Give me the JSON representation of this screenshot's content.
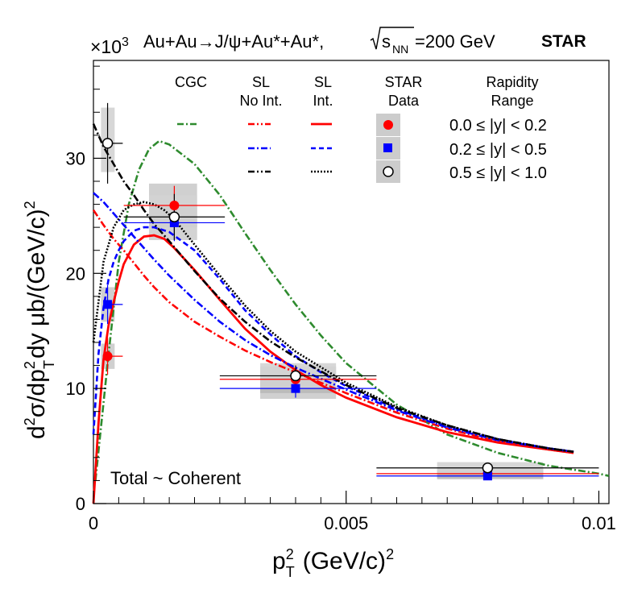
{
  "chart_data": {
    "type": "line",
    "title": "Au+Au→J/ψ+Au*+Au*,",
    "energy_label": "=200 GeV",
    "sqrt_label": "s",
    "sqrt_sub": "NN",
    "experiment": "STAR",
    "multiplier": "×10",
    "multiplier_exp": "3",
    "xlabel_main": "p",
    "xlabel_sup": "2",
    "xlabel_sub": "T",
    "xlabel_rest": "(GeV/c)",
    "xlabel_rest_sup": "2",
    "ylabel_a": "d",
    "ylabel_b": "σ/dp",
    "ylabel_c": "dy μb/(GeV/c)",
    "ylabel_sup1": "2",
    "ylabel_sup2": "2",
    "ylabel_sub": "T",
    "annotation": "Total ~ Coherent",
    "xlim": [
      0,
      0.0102
    ],
    "ylim": [
      0,
      38.5
    ],
    "x_ticks": [
      {
        "value": 0,
        "label": "0"
      },
      {
        "value": 0.005,
        "label": "0.005"
      },
      {
        "value": 0.01,
        "label": "0.01"
      }
    ],
    "y_ticks": [
      {
        "value": 0,
        "label": "0"
      },
      {
        "value": 10,
        "label": "10"
      },
      {
        "value": 20,
        "label": "20"
      },
      {
        "value": 30,
        "label": "30"
      }
    ],
    "legend": {
      "headers": {
        "cgc": "CGC",
        "sl_noint_1": "SL",
        "sl_noint_2": "No Int.",
        "sl_int_1": "SL",
        "sl_int_2": "Int.",
        "star_1": "STAR",
        "star_2": "Data",
        "rap_1": "Rapidity",
        "rap_2": "Range"
      },
      "ranges": [
        "0.0 ≤ |y| < 0.2",
        "0.2 ≤ |y| < 0.5",
        "0.5 ≤ |y| < 1.0"
      ]
    },
    "colors": {
      "cgc": "#2e8b2e",
      "red": "#ff0000",
      "blue": "#0000ff",
      "black": "#000000",
      "syst_light": "#d3d3d3",
      "syst_dark": "#a9a9a9"
    },
    "series": [
      {
        "name": "CGC",
        "style": "dashdot",
        "color": "#2e8b2e",
        "x": [
          4e-05,
          0.0003,
          0.0005,
          0.0007,
          0.0009,
          0.0011,
          0.0013,
          0.0015,
          0.002,
          0.0025,
          0.003,
          0.0035,
          0.004,
          0.0045,
          0.005,
          0.006,
          0.007,
          0.008,
          0.009,
          0.01,
          0.0102
        ],
        "y": [
          2,
          13,
          21,
          26,
          29,
          30.8,
          31.5,
          31.2,
          29.5,
          26.8,
          23.5,
          20.3,
          17.3,
          14.6,
          12.2,
          8.6,
          6.0,
          4.4,
          3.3,
          2.6,
          2.4
        ]
      },
      {
        "name": "SL Int. 0.0<|y|<0.2",
        "style": "solid",
        "color": "#ff0000",
        "x": [
          0,
          0.0001,
          0.0002,
          0.0003,
          0.0004,
          0.0005,
          0.0006,
          0.0008,
          0.001,
          0.0012,
          0.0014,
          0.0016,
          0.002,
          0.0025,
          0.003,
          0.0035,
          0.004,
          0.0045,
          0.005,
          0.006,
          0.007,
          0.008,
          0.009,
          0.0095
        ],
        "y": [
          0,
          7,
          12.5,
          15.5,
          17.5,
          19.3,
          20.8,
          22.5,
          23.2,
          23.3,
          23,
          22.2,
          20.3,
          17.7,
          15.2,
          13.2,
          11.6,
          10.3,
          9.2,
          7.5,
          6.2,
          5.3,
          4.7,
          4.4
        ]
      },
      {
        "name": "SL No Int. 0.0<|y|<0.2",
        "style": "dashdot",
        "color": "#ff0000",
        "x": [
          0,
          0.0002,
          0.0004,
          0.0006,
          0.0008,
          0.001,
          0.0012,
          0.0015,
          0.002,
          0.0025,
          0.003,
          0.0035,
          0.004,
          0.005,
          0.006,
          0.007,
          0.008,
          0.009,
          0.0095
        ],
        "y": [
          25.5,
          24.2,
          23,
          22,
          20.9,
          19.8,
          18.8,
          17.5,
          15.8,
          14.5,
          13.3,
          12.3,
          11.4,
          9.6,
          7.9,
          6.5,
          5.4,
          4.7,
          4.4
        ]
      },
      {
        "name": "SL Int. 0.2<|y|<0.5",
        "style": "dashed",
        "color": "#0000ff",
        "x": [
          0,
          0.0001,
          0.0002,
          0.0003,
          0.0004,
          0.0005,
          0.0006,
          0.0008,
          0.001,
          0.0012,
          0.0015,
          0.002,
          0.0025,
          0.003,
          0.0035,
          0.004,
          0.0045,
          0.005,
          0.006,
          0.007,
          0.008,
          0.009,
          0.0095
        ],
        "y": [
          6,
          13,
          17,
          19.5,
          21,
          22,
          22.8,
          23.7,
          24,
          24,
          23.6,
          22,
          19.5,
          16.8,
          14.7,
          12.8,
          11.4,
          10.2,
          8.2,
          6.7,
          5.6,
          4.8,
          4.5
        ]
      },
      {
        "name": "SL No Int. 0.2<|y|<0.5",
        "style": "dashdot",
        "color": "#0000ff",
        "x": [
          0,
          0.0002,
          0.0004,
          0.0006,
          0.0008,
          0.001,
          0.0012,
          0.0015,
          0.002,
          0.0025,
          0.003,
          0.0035,
          0.004,
          0.005,
          0.006,
          0.007,
          0.008,
          0.009,
          0.0095
        ],
        "y": [
          27,
          26.2,
          25.2,
          24.2,
          23.2,
          22.2,
          21.2,
          19.8,
          17.7,
          15.8,
          14.2,
          12.9,
          11.8,
          9.9,
          8.1,
          6.6,
          5.5,
          4.8,
          4.5
        ]
      },
      {
        "name": "SL Int. 0.5<|y|<1.0",
        "style": "dotted",
        "color": "#000000",
        "x": [
          0,
          0.0002,
          0.0004,
          0.0006,
          0.0008,
          0.001,
          0.0012,
          0.0014,
          0.0016,
          0.002,
          0.0025,
          0.003,
          0.0035,
          0.004,
          0.005,
          0.006,
          0.007,
          0.008,
          0.009,
          0.0095
        ],
        "y": [
          14,
          21,
          24,
          25.5,
          26,
          26.2,
          26,
          25.5,
          24.7,
          22.5,
          19.8,
          17.2,
          15,
          13.2,
          10.5,
          8.4,
          6.8,
          5.6,
          4.8,
          4.5
        ]
      },
      {
        "name": "SL No Int. 0.5<|y|<1.0",
        "style": "dashdot",
        "color": "#000000",
        "x": [
          0,
          0.0002,
          0.0004,
          0.0006,
          0.0008,
          0.001,
          0.0012,
          0.0015,
          0.002,
          0.0025,
          0.003,
          0.0035,
          0.004,
          0.005,
          0.006,
          0.007,
          0.008,
          0.009,
          0.0095
        ],
        "y": [
          33,
          31,
          29.5,
          28,
          26.8,
          25.5,
          24.3,
          22.8,
          20.2,
          17.8,
          15.8,
          14.1,
          12.7,
          10.3,
          8.3,
          6.8,
          5.6,
          4.8,
          4.5
        ]
      }
    ],
    "data_points": [
      {
        "range": "0.0 ≤ |y| < 0.2",
        "marker": "circle-filled",
        "color": "#ff0000",
        "points": [
          {
            "x": 0.00028,
            "y": 12.8,
            "xerr": [
              0.00028,
              0.00058
            ],
            "yerr": [
              1.6,
              1.6
            ],
            "syst": [
              0.00015,
              0.00042,
              11.7,
              13.9
            ]
          },
          {
            "x": 0.0016,
            "y": 25.9,
            "xerr": [
              0.0006,
              0.0026
            ],
            "yerr": [
              1.7,
              1.7
            ],
            "syst": [
              0.0011,
              0.00205,
              24.0,
              27.8
            ]
          },
          {
            "x": 0.004,
            "y": 10.8,
            "xerr": [
              0.0025,
              0.0056
            ],
            "yerr": [
              0.9,
              0.9
            ],
            "syst": [
              0.0033,
              0.0048,
              9.6,
              11.9
            ]
          },
          {
            "x": 0.0078,
            "y": 2.6,
            "xerr": [
              0.0056,
              0.01
            ],
            "yerr": [
              0.3,
              0.3
            ],
            "syst": [
              0.0068,
              0.0089,
              2.2,
              3.0
            ]
          }
        ]
      },
      {
        "range": "0.2 ≤ |y| < 0.5",
        "marker": "square-filled",
        "color": "#0000ff",
        "points": [
          {
            "x": 0.00028,
            "y": 17.3,
            "xerr": [
              0.00028,
              0.00058
            ],
            "yerr": [
              1.7,
              1.7
            ],
            "syst": [
              0.00015,
              0.00042,
              15.8,
              18.8
            ]
          },
          {
            "x": 0.0016,
            "y": 24.4,
            "xerr": [
              0.0006,
              0.0026
            ],
            "yerr": [
              1.6,
              1.6
            ],
            "syst": [
              0.0011,
              0.00205,
              22.9,
              25.9
            ]
          },
          {
            "x": 0.004,
            "y": 10.0,
            "xerr": [
              0.0025,
              0.0056
            ],
            "yerr": [
              0.8,
              0.8
            ],
            "syst": [
              0.0033,
              0.0048,
              9.1,
              10.9
            ]
          },
          {
            "x": 0.0078,
            "y": 2.4,
            "xerr": [
              0.0056,
              0.01
            ],
            "yerr": [
              0.3,
              0.3
            ],
            "syst": [
              0.0068,
              0.0089,
              2.1,
              2.8
            ]
          }
        ]
      },
      {
        "range": "0.5 ≤ |y| < 1.0",
        "marker": "circle-open",
        "color": "#000000",
        "points": [
          {
            "x": 0.00028,
            "y": 31.3,
            "xerr": [
              0.00028,
              0.00058
            ],
            "yerr": [
              3.5,
              3.5
            ],
            "syst": [
              0.00015,
              0.00042,
              28.8,
              34.4
            ]
          },
          {
            "x": 0.0016,
            "y": 24.9,
            "xerr": [
              0.0006,
              0.0026
            ],
            "yerr": [
              2.0,
              2.0
            ],
            "syst": [
              0.0011,
              0.00205,
              22.9,
              26.8
            ]
          },
          {
            "x": 0.004,
            "y": 11.1,
            "xerr": [
              0.0025,
              0.0056
            ],
            "yerr": [
              0.9,
              0.9
            ],
            "syst": [
              0.0033,
              0.0048,
              10.0,
              12.2
            ]
          },
          {
            "x": 0.0078,
            "y": 3.1,
            "xerr": [
              0.0056,
              0.01
            ],
            "yerr": [
              0.3,
              0.3
            ],
            "syst": [
              0.0068,
              0.0089,
              2.6,
              3.6
            ]
          }
        ]
      }
    ]
  }
}
